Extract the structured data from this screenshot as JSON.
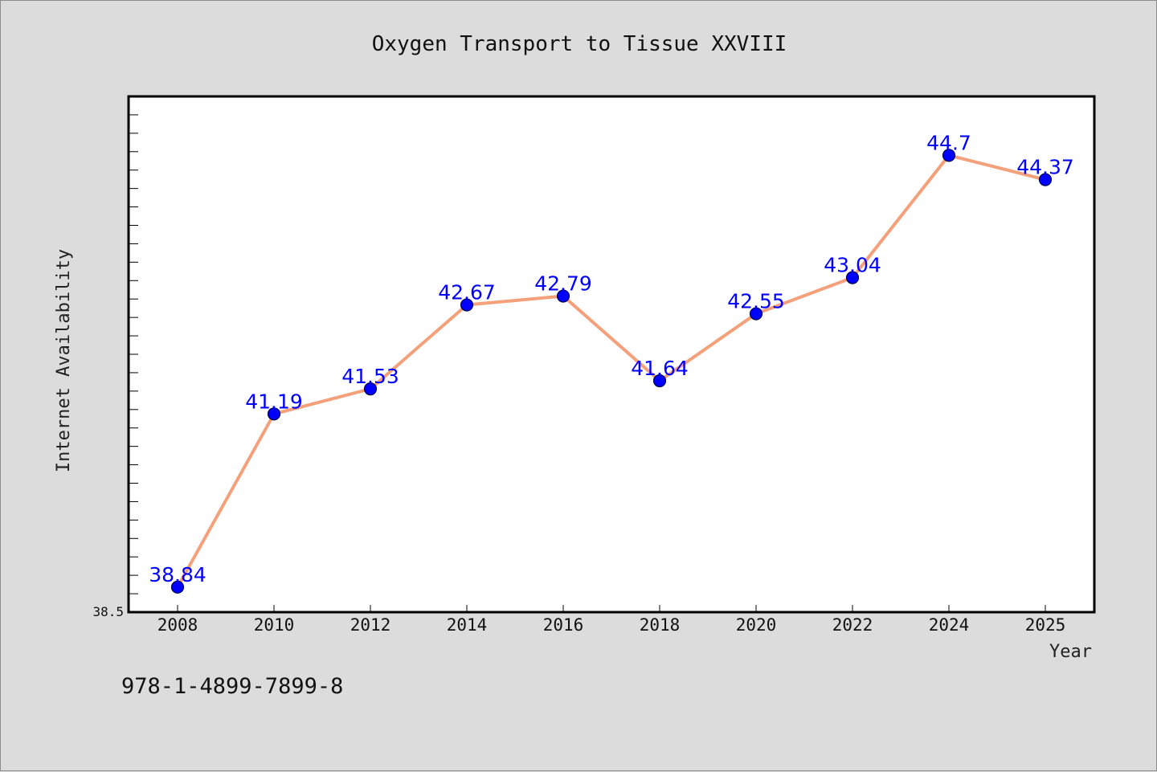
{
  "colors": {
    "background": "#dcdcdc",
    "plot_background": "#ffffff",
    "line": "#f4a07a",
    "marker": "#0000ff",
    "data_label": "#0000ff"
  },
  "isbn": "978-1-4899-7899-8",
  "chart_data": {
    "type": "line",
    "title": "Oxygen Transport to Tissue XXVIII",
    "xlabel": "Year",
    "ylabel": "Internet Availability",
    "x": [
      "2008",
      "2010",
      "2012",
      "2014",
      "2016",
      "2018",
      "2020",
      "2022",
      "2024",
      "2025"
    ],
    "series": [
      {
        "values": [
          38.84,
          41.19,
          41.53,
          42.67,
          42.79,
          41.64,
          42.55,
          43.04,
          44.7,
          44.37
        ],
        "labels": [
          "38.84",
          "41.19",
          "41.53",
          "42.67",
          "42.79",
          "41.64",
          "42.55",
          "43.04",
          "44.7",
          "44.37"
        ]
      }
    ],
    "ylim": [
      38.5,
      45.5
    ],
    "yticks_labeled": [
      "38.5"
    ],
    "grid": false
  }
}
